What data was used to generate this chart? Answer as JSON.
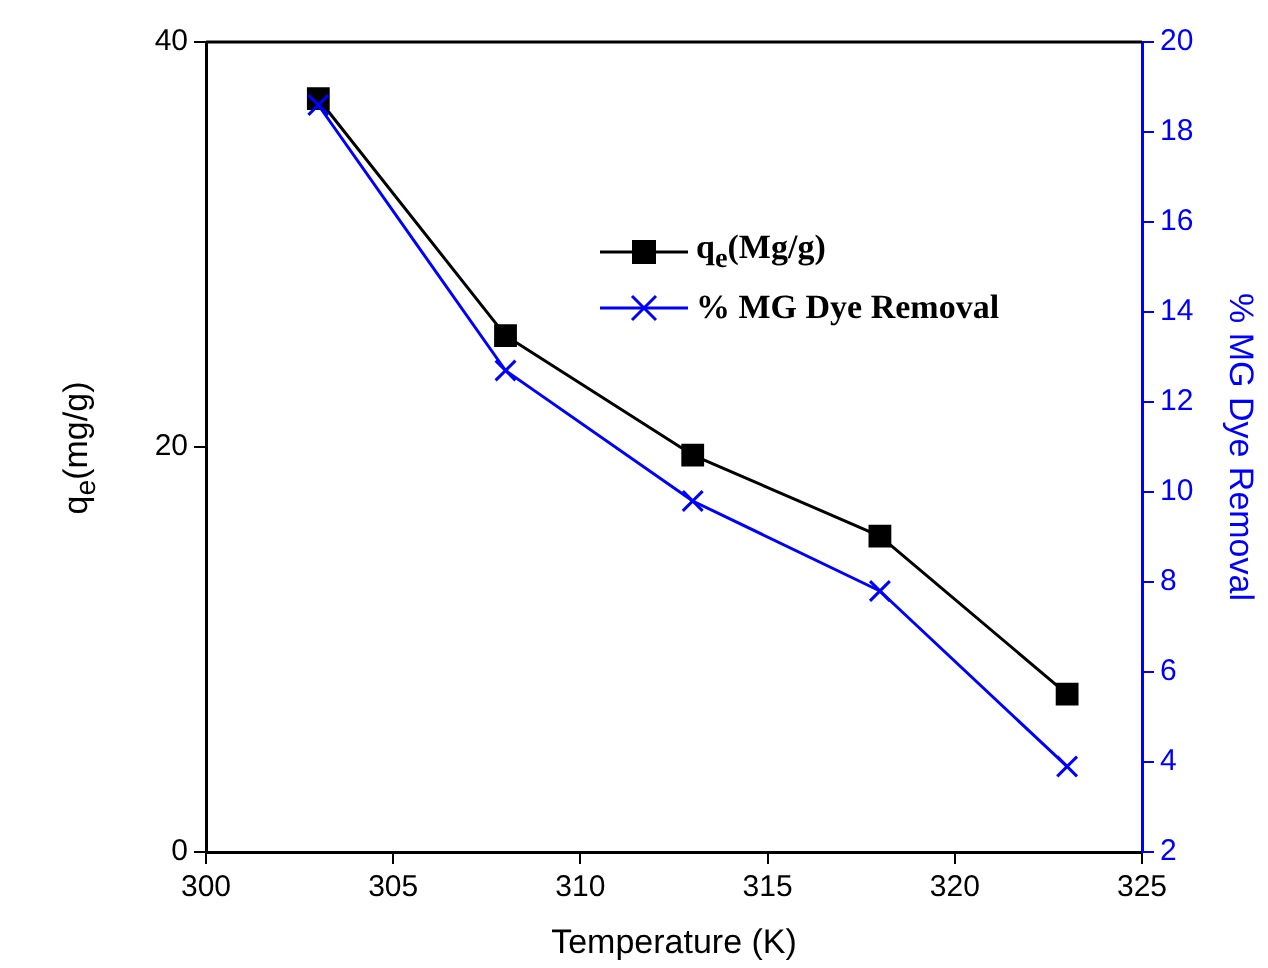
{
  "chart_data": {
    "type": "line",
    "xlabel": "Temperature (K)",
    "ylabel": "q$_{e}$(mg/g)",
    "y2label": "% MG Dye Removal",
    "x": [
      303,
      308,
      313,
      318,
      323
    ],
    "series": [
      {
        "name": "q$_{e}$(Mg/g)",
        "color": "#000000",
        "values": [
          37.2,
          25.5,
          19.6,
          15.6,
          7.8
        ],
        "marker": "square"
      },
      {
        "name": "% MG Dye Removal",
        "color": "#0000ff",
        "values": [
          18.6,
          12.7,
          9.8,
          7.8,
          3.9
        ],
        "axis": "y2",
        "marker": "cross"
      }
    ],
    "xlim": [
      300,
      325
    ],
    "xticks": [
      300,
      305,
      310,
      315,
      320,
      325
    ],
    "ylim": [
      0,
      40
    ],
    "yticks": [
      0,
      20,
      40
    ],
    "y2lim": [
      2,
      20
    ],
    "y2ticks": [
      2,
      4,
      6,
      8,
      10,
      12,
      14,
      16,
      18,
      20
    ],
    "grid": false,
    "legend": "top right",
    "line_style": "solid"
  }
}
